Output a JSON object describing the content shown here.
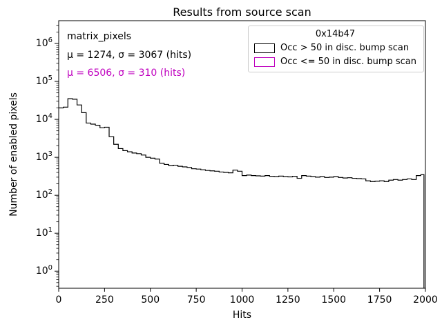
{
  "figure": {
    "title": "Results from source scan",
    "xlabel": "Hits",
    "ylabel": "Number of enabled pixels"
  },
  "annotations": {
    "dataset_label": "matrix_pixels",
    "stats": [
      {
        "text": "μ = 1274, σ = 3067 (hits)",
        "color": "#000000"
      },
      {
        "text": "μ = 6506, σ = 310 (hits)",
        "color": "#bf00bf"
      }
    ]
  },
  "legend": {
    "title": "0x14b47",
    "entries": [
      {
        "label": "Occ > 50 in disc. bump scan",
        "color": "#000000"
      },
      {
        "label": "Occ <= 50 in disc. bump scan",
        "color": "#bf00bf"
      }
    ]
  },
  "chart_data": {
    "type": "histogram-step",
    "title": "Results from source scan",
    "xlabel": "Hits",
    "ylabel": "Number of enabled pixels",
    "yscale": "log",
    "grid": false,
    "legend_position": "upper right",
    "xlim": [
      0,
      2000
    ],
    "ylim_log10": [
      -0.45,
      6.6
    ],
    "xticks": [
      0,
      250,
      500,
      750,
      1000,
      1250,
      1500,
      1750,
      2000
    ],
    "ytick_exponents": [
      0,
      1,
      2,
      3,
      4,
      5,
      6
    ],
    "series_name": "Occ > 50 in disc. bump scan",
    "series_color": "#000000",
    "bin_start": 0,
    "bin_width": 25,
    "x_last_edge": 1992,
    "values": [
      20000,
      21000,
      35000,
      34000,
      24000,
      15000,
      8000,
      7500,
      7000,
      6000,
      6200,
      3500,
      2200,
      1700,
      1500,
      1400,
      1300,
      1250,
      1150,
      1000,
      950,
      900,
      700,
      650,
      600,
      620,
      580,
      560,
      540,
      500,
      490,
      470,
      450,
      440,
      430,
      410,
      400,
      390,
      460,
      430,
      330,
      340,
      330,
      325,
      320,
      330,
      315,
      310,
      320,
      310,
      305,
      315,
      280,
      330,
      320,
      310,
      300,
      310,
      295,
      300,
      310,
      295,
      285,
      290,
      280,
      275,
      270,
      240,
      230,
      235,
      240,
      230,
      250,
      260,
      250,
      260,
      270,
      260,
      330,
      350
    ]
  }
}
